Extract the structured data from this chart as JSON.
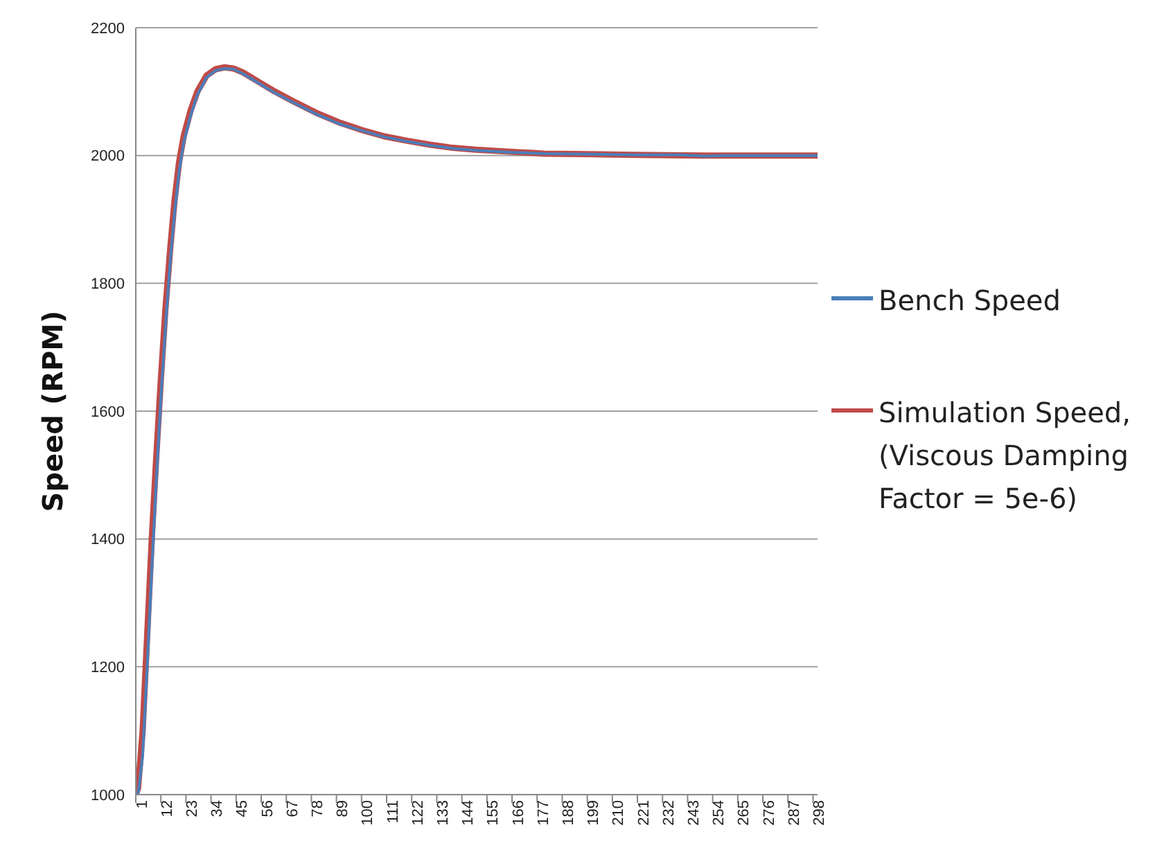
{
  "chart_data": {
    "type": "line",
    "ylabel": "Speed (RPM)",
    "xlim": [
      1,
      300
    ],
    "xticks": [
      1,
      12,
      23,
      34,
      45,
      56,
      67,
      78,
      89,
      100,
      111,
      122,
      133,
      144,
      155,
      166,
      177,
      188,
      199,
      210,
      221,
      232,
      243,
      254,
      265,
      276,
      287,
      298
    ],
    "ylim": [
      1000,
      2200
    ],
    "yticks": [
      1000,
      1200,
      1400,
      1600,
      1800,
      2000,
      2200
    ],
    "grid": "y",
    "legend": "right",
    "marker": "none",
    "line_style": "solid",
    "series": [
      {
        "name": "Bench Speed",
        "color": "#4a7ebb",
        "x": [
          1,
          2,
          4,
          6,
          8,
          10,
          12,
          14,
          16,
          18,
          20,
          22,
          25,
          28,
          32,
          36,
          40,
          44,
          48,
          55,
          62,
          70,
          80,
          90,
          100,
          110,
          120,
          130,
          140,
          150,
          165,
          180,
          200,
          220,
          240,
          250,
          260,
          270,
          280,
          290,
          300
        ],
        "values": [
          1000,
          1000,
          1060,
          1200,
          1350,
          1490,
          1620,
          1730,
          1830,
          1910,
          1975,
          2020,
          2062,
          2095,
          2122,
          2133,
          2136,
          2135,
          2128,
          2113,
          2098,
          2083,
          2065,
          2050,
          2039,
          2029,
          2022,
          2016,
          2011,
          2008,
          2005,
          2003,
          2002,
          2001,
          2001,
          1999,
          2000,
          2000,
          2000,
          2000,
          2000
        ]
      },
      {
        "name": "Simulation Speed, (Viscous Damping Factor = 5e-6)",
        "color": "#be4b48",
        "x": [
          1,
          2,
          4,
          6,
          8,
          10,
          12,
          14,
          16,
          18,
          20,
          22,
          25,
          28,
          32,
          36,
          40,
          44,
          48,
          55,
          62,
          70,
          80,
          90,
          100,
          110,
          120,
          130,
          140,
          150,
          165,
          180,
          200,
          220,
          250,
          280,
          300
        ],
        "values": [
          1000,
          1010,
          1100,
          1250,
          1400,
          1530,
          1650,
          1760,
          1850,
          1930,
          1990,
          2030,
          2070,
          2100,
          2125,
          2135,
          2138,
          2136,
          2130,
          2115,
          2100,
          2085,
          2067,
          2052,
          2040,
          2030,
          2023,
          2017,
          2012,
          2009,
          2006,
          2003,
          2002,
          2001,
          2000,
          2000,
          2000
        ]
      }
    ]
  }
}
